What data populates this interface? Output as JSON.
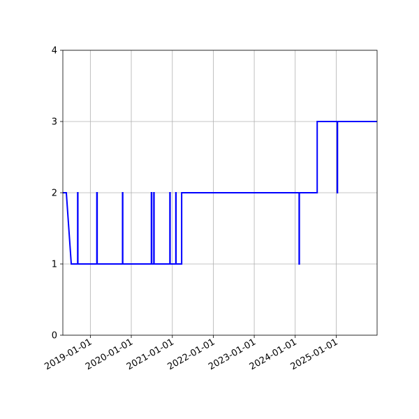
{
  "chart_data": {
    "type": "line",
    "title": "",
    "xlabel": "",
    "ylabel": "",
    "x_axis_type": "date",
    "xlim": [
      "2018-05-01",
      "2025-12-31"
    ],
    "ylim": [
      0,
      4
    ],
    "x_ticks": [
      "2019-01-01",
      "2020-01-01",
      "2021-01-01",
      "2022-01-01",
      "2023-01-01",
      "2024-01-01",
      "2025-01-01"
    ],
    "y_ticks": [
      0,
      1,
      2,
      3,
      4
    ],
    "grid": true,
    "legend": "none",
    "colors": {
      "series": "#0000ff",
      "grid": "#b0b0b0"
    },
    "series": [
      {
        "x": [
          "2018-05-01",
          "2018-06-01",
          "2018-07-15",
          "2018-09-10",
          "2018-09-10",
          "2018-09-12",
          "2018-09-12",
          "2019-02-28",
          "2019-02-28",
          "2019-03-03",
          "2019-03-03",
          "2019-10-15",
          "2019-10-15",
          "2019-10-17",
          "2019-10-17",
          "2020-06-28",
          "2020-06-28",
          "2020-07-01",
          "2020-07-01",
          "2020-07-20",
          "2020-07-20",
          "2020-07-22",
          "2020-07-22",
          "2020-12-10",
          "2020-12-10",
          "2020-12-12",
          "2020-12-12",
          "2021-02-01",
          "2021-02-01",
          "2021-02-03",
          "2021-02-03",
          "2021-03-25",
          "2021-03-25",
          "2024-02-05",
          "2024-02-05",
          "2024-02-07",
          "2024-02-07",
          "2024-07-15",
          "2024-07-15",
          "2025-01-10",
          "2025-01-10",
          "2025-01-12",
          "2025-01-12",
          "2025-12-31"
        ],
        "y": [
          2,
          2,
          1,
          1,
          2,
          2,
          1,
          1,
          2,
          2,
          1,
          1,
          2,
          2,
          1,
          1,
          2,
          2,
          1,
          1,
          2,
          2,
          1,
          1,
          2,
          2,
          1,
          1,
          2,
          2,
          1,
          1,
          2,
          2,
          1,
          1,
          2,
          2,
          3,
          3,
          2,
          2,
          3,
          3
        ]
      }
    ]
  }
}
